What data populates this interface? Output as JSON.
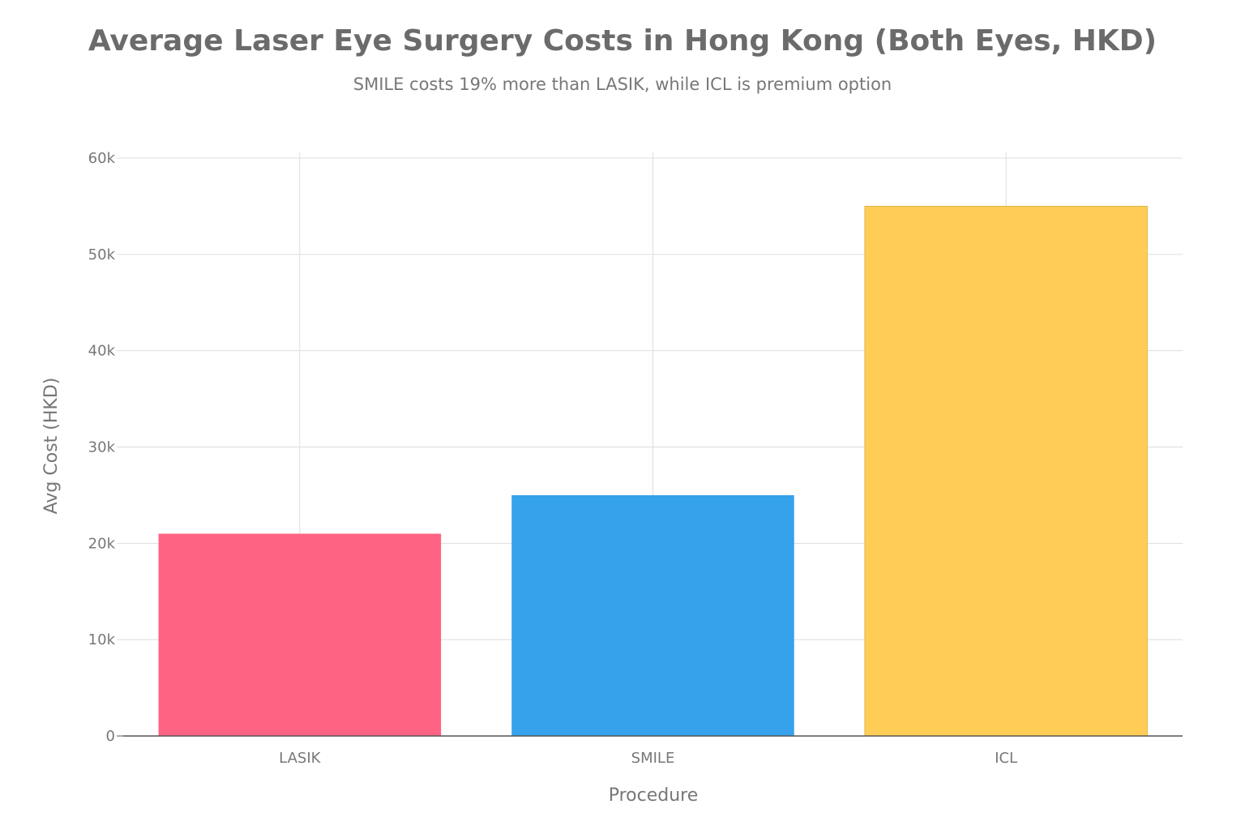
{
  "chart_data": {
    "type": "bar",
    "title": "Average Laser Eye Surgery Costs in Hong Kong (Both Eyes, HKD)",
    "subtitle": "SMILE costs 19% more than LASIK, while ICL is premium option",
    "xlabel": "Procedure",
    "ylabel": "Avg Cost (HKD)",
    "categories": [
      "LASIK",
      "SMILE",
      "ICL"
    ],
    "values": [
      21000,
      25000,
      55000
    ],
    "colors": [
      "#FF6384",
      "#36A2EB",
      "#FFCD56"
    ],
    "ylim": [
      0,
      60000
    ],
    "yticks": [
      0,
      10000,
      20000,
      30000,
      40000,
      50000,
      60000
    ],
    "ytick_labels": [
      "0",
      "10k",
      "20k",
      "30k",
      "40k",
      "50k",
      "60k"
    ],
    "grid": true,
    "legend": "none"
  }
}
